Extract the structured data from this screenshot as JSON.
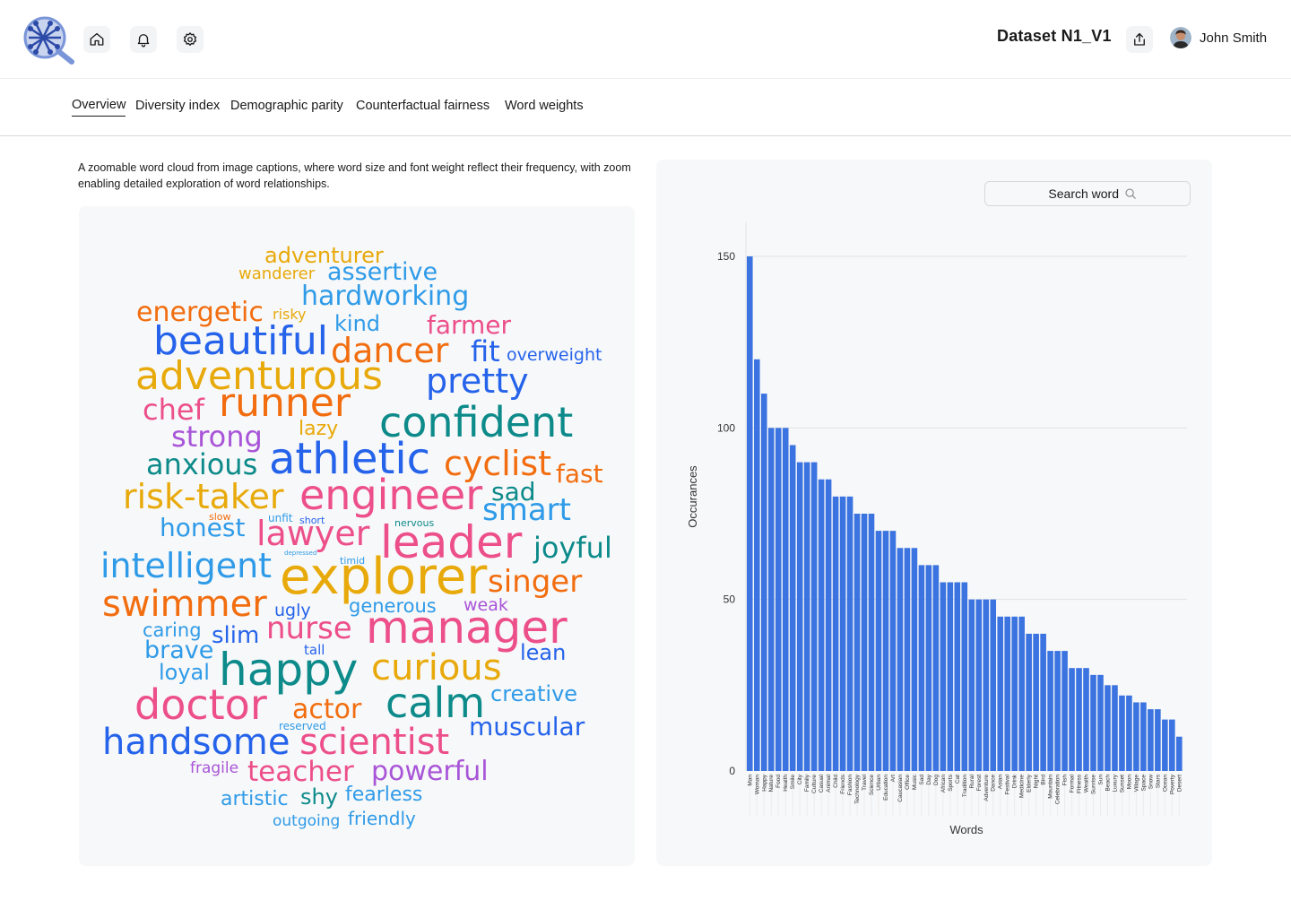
{
  "header": {
    "dataset_title": "Dataset N1_V1",
    "user_name": "John Smith",
    "icons": {
      "logo": "analytics-logo",
      "home": "home-icon",
      "bell": "bell-icon",
      "settings": "gear-icon",
      "share": "share-icon"
    }
  },
  "tabs": [
    {
      "label": "Overview",
      "active": true
    },
    {
      "label": "Diversity index",
      "active": false
    },
    {
      "label": "Demographic parity",
      "active": false
    },
    {
      "label": "Counterfactual fairness",
      "active": false
    },
    {
      "label": "Word weights",
      "active": false
    }
  ],
  "description": "A zoomable word cloud from image captions, where word size and font weight reflect their frequency, with zoom enabling detailed exploration of word relationships.",
  "colors": {
    "accent": "#3b73e0",
    "orange": "#f26d0f",
    "blue": "#2563eb",
    "teal": "#0d8a8a",
    "pink": "#ec4f8a",
    "yellow": "#e8a90a",
    "purple": "#a855d8",
    "lightblue": "#2f9be8"
  },
  "word_cloud": [
    {
      "text": "adventurer",
      "color": "yellow"
    },
    {
      "text": "wanderer",
      "color": "yellow"
    },
    {
      "text": "assertive",
      "color": "lightblue"
    },
    {
      "text": "hardworking",
      "color": "lightblue"
    },
    {
      "text": "energetic",
      "color": "orange"
    },
    {
      "text": "risky",
      "color": "yellow"
    },
    {
      "text": "kind",
      "color": "lightblue"
    },
    {
      "text": "farmer",
      "color": "pink"
    },
    {
      "text": "beautiful",
      "color": "blue"
    },
    {
      "text": "dancer",
      "color": "orange"
    },
    {
      "text": "fit",
      "color": "blue"
    },
    {
      "text": "overweight",
      "color": "blue"
    },
    {
      "text": "adventurous",
      "color": "yellow"
    },
    {
      "text": "pretty",
      "color": "blue"
    },
    {
      "text": "chef",
      "color": "pink"
    },
    {
      "text": "runner",
      "color": "orange"
    },
    {
      "text": "confident",
      "color": "teal"
    },
    {
      "text": "lazy",
      "color": "yellow"
    },
    {
      "text": "strong",
      "color": "purple"
    },
    {
      "text": "anxious",
      "color": "teal"
    },
    {
      "text": "athletic",
      "color": "blue"
    },
    {
      "text": "cyclist",
      "color": "orange"
    },
    {
      "text": "fast",
      "color": "orange"
    },
    {
      "text": "risk-taker",
      "color": "yellow"
    },
    {
      "text": "engineer",
      "color": "pink"
    },
    {
      "text": "sad",
      "color": "teal"
    },
    {
      "text": "smart",
      "color": "lightblue"
    },
    {
      "text": "slow",
      "color": "orange"
    },
    {
      "text": "unfit",
      "color": "lightblue"
    },
    {
      "text": "short",
      "color": "blue"
    },
    {
      "text": "nervous",
      "color": "teal"
    },
    {
      "text": "honest",
      "color": "lightblue"
    },
    {
      "text": "lawyer",
      "color": "pink"
    },
    {
      "text": "leader",
      "color": "pink"
    },
    {
      "text": "joyful",
      "color": "teal"
    },
    {
      "text": "depressed",
      "color": "lightblue"
    },
    {
      "text": "timid",
      "color": "lightblue"
    },
    {
      "text": "intelligent",
      "color": "lightblue"
    },
    {
      "text": "explorer",
      "color": "yellow"
    },
    {
      "text": "singer",
      "color": "orange"
    },
    {
      "text": "swimmer",
      "color": "orange"
    },
    {
      "text": "ugly",
      "color": "blue"
    },
    {
      "text": "generous",
      "color": "lightblue"
    },
    {
      "text": "weak",
      "color": "purple"
    },
    {
      "text": "caring",
      "color": "lightblue"
    },
    {
      "text": "nurse",
      "color": "pink"
    },
    {
      "text": "manager",
      "color": "pink"
    },
    {
      "text": "slim",
      "color": "blue"
    },
    {
      "text": "brave",
      "color": "lightblue"
    },
    {
      "text": "tall",
      "color": "blue"
    },
    {
      "text": "lean",
      "color": "blue"
    },
    {
      "text": "loyal",
      "color": "lightblue"
    },
    {
      "text": "happy",
      "color": "teal"
    },
    {
      "text": "curious",
      "color": "yellow"
    },
    {
      "text": "doctor",
      "color": "pink"
    },
    {
      "text": "calm",
      "color": "teal"
    },
    {
      "text": "creative",
      "color": "lightblue"
    },
    {
      "text": "actor",
      "color": "orange"
    },
    {
      "text": "reserved",
      "color": "lightblue"
    },
    {
      "text": "muscular",
      "color": "blue"
    },
    {
      "text": "handsome",
      "color": "blue"
    },
    {
      "text": "scientist",
      "color": "pink"
    },
    {
      "text": "fragile",
      "color": "purple"
    },
    {
      "text": "teacher",
      "color": "pink"
    },
    {
      "text": "powerful",
      "color": "purple"
    },
    {
      "text": "artistic",
      "color": "lightblue"
    },
    {
      "text": "shy",
      "color": "teal"
    },
    {
      "text": "fearless",
      "color": "lightblue"
    },
    {
      "text": "outgoing",
      "color": "lightblue"
    },
    {
      "text": "friendly",
      "color": "lightblue"
    }
  ],
  "search": {
    "placeholder": "Search word"
  },
  "chart_data": {
    "type": "bar",
    "xlabel": "Words",
    "ylabel": "Occurances",
    "ylim": [
      0,
      150
    ],
    "yticks": [
      0,
      50,
      100,
      150
    ],
    "grid": true,
    "color": "#3b73e0",
    "categories": [
      "Man",
      "Woman",
      "Happy",
      "Nature",
      "Food",
      "Health",
      "Smile",
      "City",
      "Family",
      "Culture",
      "Casual",
      "Animal",
      "Child",
      "Friends",
      "Fashion",
      "Technology",
      "Travel",
      "Science",
      "Urban",
      "Education",
      "Art",
      "Caucasian",
      "Office",
      "Music",
      "Sad",
      "Day",
      "Dog",
      "African",
      "Sports",
      "Cat",
      "Tradition",
      "Rural",
      "Forest",
      "Adventure",
      "Dance",
      "Asian",
      "Festival",
      "Drink",
      "Medicine",
      "Elderly",
      "Night",
      "Bird",
      "Mountain",
      "Celebration",
      "Fish",
      "Formal",
      "Fitness",
      "Wealth",
      "Sunrise",
      "Sun",
      "Beach",
      "Luxury",
      "Sunset",
      "Moon",
      "Village",
      "Space",
      "Snow",
      "Stars",
      "Ocean",
      "Poverty",
      "Desert"
    ],
    "values": [
      150,
      120,
      110,
      100,
      100,
      100,
      95,
      90,
      90,
      90,
      85,
      85,
      80,
      80,
      80,
      75,
      75,
      75,
      70,
      70,
      70,
      65,
      65,
      65,
      60,
      60,
      60,
      55,
      55,
      55,
      55,
      50,
      50,
      50,
      50,
      45,
      45,
      45,
      45,
      40,
      40,
      40,
      35,
      35,
      35,
      30,
      30,
      30,
      28,
      28,
      25,
      25,
      22,
      22,
      20,
      20,
      18,
      18,
      15,
      15,
      10
    ]
  }
}
